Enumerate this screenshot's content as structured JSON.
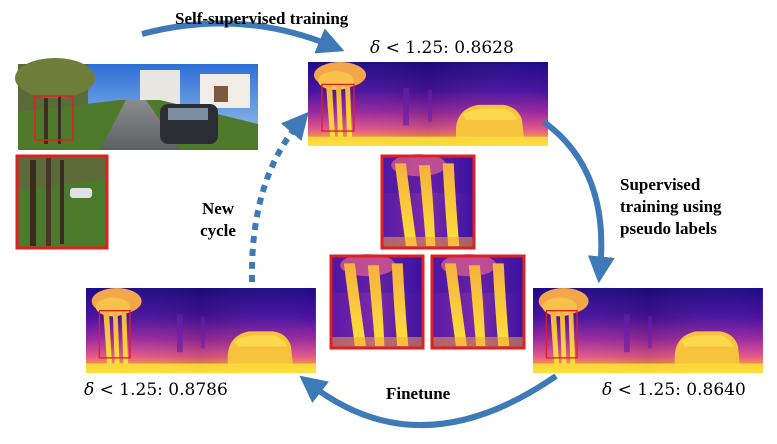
{
  "labels": {
    "self_supervised": "Self-supervised training",
    "supervised": [
      "Supervised",
      "training using",
      "pseudo labels"
    ],
    "new_cycle": [
      "New",
      "cycle"
    ],
    "finetune": "Finetune"
  },
  "metrics": {
    "top": {
      "symbol": "δ",
      "text": " < 1.25: 0.8628"
    },
    "right": {
      "symbol": "δ",
      "text": " < 1.25: 0.8640"
    },
    "left": {
      "symbol": "δ",
      "text": " < 1.25: 0.8786"
    }
  },
  "colors": {
    "arrow": "#3f7ab8",
    "highlight_box": "#e02020",
    "depth_far": "#2a0b8a",
    "depth_mid": "#c23b9a",
    "depth_near": "#fde13a"
  }
}
